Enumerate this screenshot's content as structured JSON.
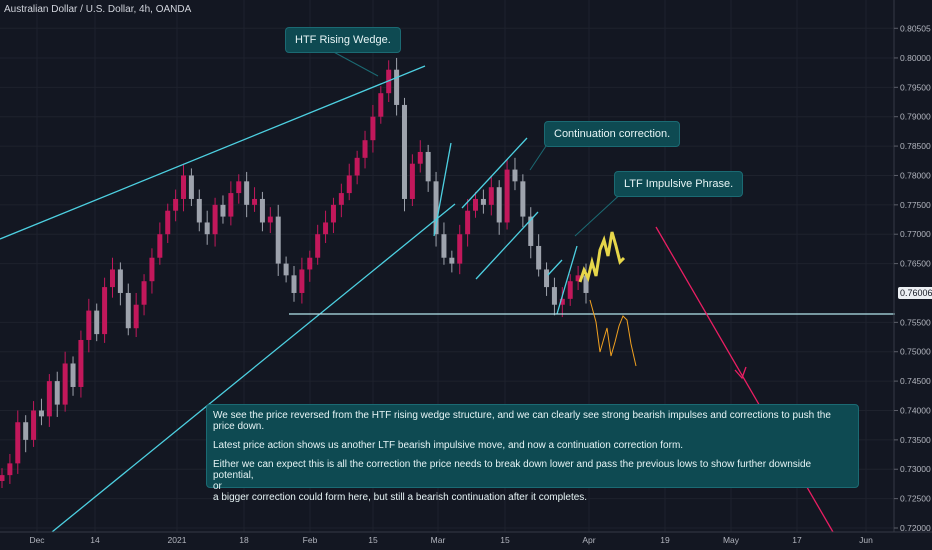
{
  "header": {
    "symbol_title": "Australian Dollar / U.S. Dollar, 4h, OANDA"
  },
  "annotations": [
    "HTF Rising Wedge.",
    "Continuation correction.",
    "LTF Impulsive Phrase."
  ],
  "analysis": {
    "line1": "We see the price reversed from the HTF rising wedge structure, and we can clearly see strong bearish impulses and corrections to push the price down.",
    "line2": "Latest price action shows us another LTF bearish impulsive move, and now a continuation correction form.",
    "line3a": "Either we can expect this is all the correction the price needs to break down lower and pass the previous lows to show further downside potential,",
    "line3b": "or",
    "line3c": "a bigger correction could form here, but still a bearish continuation after it completes."
  },
  "current_price_label": "0.76006",
  "colors": {
    "background": "#131722",
    "bull_candle": "#c2185b",
    "bear_candle": "#9ea3ad",
    "trendline": "#4dd0e1",
    "projection_orange": "#f0a020",
    "projection_yellow": "#e6d64a",
    "projection_arrow": "#e91e63"
  },
  "chart_data": {
    "type": "candlestick",
    "title": "Australian Dollar / U.S. Dollar, 4h, OANDA",
    "x_ticks": [
      "Dec",
      "14",
      "2021",
      "18",
      "Feb",
      "15",
      "Mar",
      "15",
      "Apr",
      "19",
      "May",
      "17",
      "Jun"
    ],
    "y_ticks": [
      "0.80505",
      "0.80000",
      "0.79500",
      "0.79000",
      "0.78500",
      "0.78000",
      "0.77500",
      "0.77000",
      "0.76500",
      "0.76006",
      "0.75500",
      "0.75000",
      "0.74500",
      "0.74000",
      "0.73500",
      "0.73000",
      "0.72500",
      "0.72000"
    ],
    "y_range": [
      0.72,
      0.8085
    ],
    "support_level": 0.7562,
    "current_price": 0.76006,
    "price_path_close": [
      0.729,
      0.731,
      0.738,
      0.735,
      0.74,
      0.739,
      0.745,
      0.741,
      0.748,
      0.744,
      0.752,
      0.757,
      0.753,
      0.761,
      0.764,
      0.76,
      0.754,
      0.758,
      0.762,
      0.766,
      0.77,
      0.774,
      0.776,
      0.78,
      0.776,
      0.772,
      0.77,
      0.775,
      0.773,
      0.777,
      0.779,
      0.775,
      0.776,
      0.772,
      0.773,
      0.765,
      0.763,
      0.76,
      0.764,
      0.766,
      0.77,
      0.772,
      0.775,
      0.777,
      0.78,
      0.783,
      0.786,
      0.79,
      0.794,
      0.798,
      0.792,
      0.776,
      0.782,
      0.784,
      0.779,
      0.77,
      0.766,
      0.765,
      0.77,
      0.774,
      0.776,
      0.775,
      0.778,
      0.772,
      0.781,
      0.779,
      0.773,
      0.768,
      0.764,
      0.761,
      0.758,
      0.759,
      0.762,
      0.763,
      0.76
    ]
  }
}
